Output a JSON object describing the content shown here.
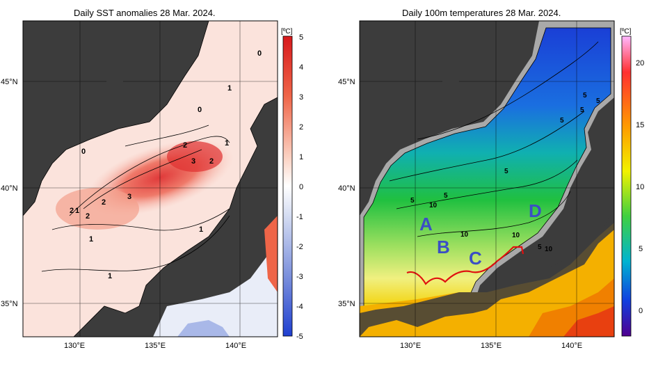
{
  "left_panel": {
    "title": "Daily SST anomalies 28 Mar. 2024.",
    "unit": "[ºC]",
    "colorbar_ticks": [
      "5",
      "4",
      "3",
      "2",
      "1",
      "0",
      "-1",
      "-2",
      "-3",
      "-4",
      "-5"
    ],
    "colorbar_colors": [
      "#d7191c",
      "#e34a33",
      "#ef6548",
      "#f4a582",
      "#fbd0c0",
      "#ffffff",
      "#d4dcf2",
      "#a9b8e8",
      "#7b90dc",
      "#4f67d3",
      "#1f3fd0"
    ],
    "contour_labels": [
      "0",
      "1",
      "0",
      "2",
      "1",
      "3",
      "2",
      "0",
      "3",
      "2",
      "2",
      "1",
      "2",
      "1",
      "1",
      "1"
    ],
    "region_labels": []
  },
  "right_panel": {
    "title": "Daily 100m temperatures 28 Mar. 2024.",
    "unit": "[ºC]",
    "colorbar_ticks": [
      "20",
      "15",
      "10",
      "5",
      "0"
    ],
    "contour_labels": [
      "5",
      "5",
      "5",
      "5",
      "5",
      "5",
      "5",
      "5",
      "10",
      "10",
      "10",
      "10"
    ],
    "region_labels": [
      "A",
      "B",
      "C",
      "D"
    ],
    "region_label_color": "#3b4fc4",
    "front_line_color": "#e01010"
  },
  "axes": {
    "lat_labels": [
      "45°N",
      "40°N",
      "35°N"
    ],
    "lon_labels": [
      "130°E",
      "135°E",
      "140°E"
    ]
  },
  "colors": {
    "land": "#3c3c3c",
    "shelf": "#a9a9a9"
  }
}
